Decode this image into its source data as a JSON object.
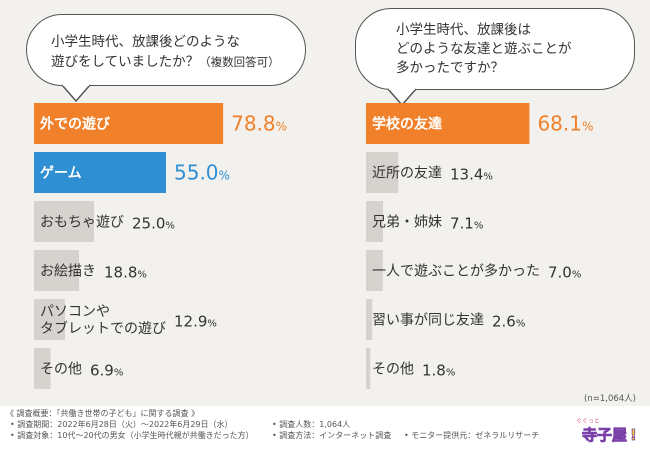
{
  "sample": "(n=1,064人)",
  "questions": {
    "left_line1": "小学生時代、放課後どのような",
    "left_line2": "遊びをしていましたか？",
    "left_note": "（複数回答可）",
    "right_line1": "小学生時代、放課後は",
    "right_line2": "どのような友達と遊ぶことが",
    "right_line3": "多かったですか？"
  },
  "colors": {
    "orange": "#f0802a",
    "blue": "#2f8fd3",
    "gray": "#d6d3cf"
  },
  "chart_data": [
    {
      "type": "bar",
      "orientation": "horizontal",
      "title": "小学生時代、放課後どのような遊びをしていましたか？（複数回答可）",
      "xlim": [
        0,
        100
      ],
      "categories": [
        "外での遊び",
        "ゲーム",
        "おもちゃ遊び",
        "お絵描き",
        "パソコンや\nタブレットでの遊び",
        "その他"
      ],
      "values": [
        78.8,
        55.0,
        25.0,
        18.8,
        12.9,
        6.9
      ],
      "value_labels": [
        "78.8%",
        "55.0%",
        "25.0%",
        "18.8%",
        "12.9%",
        "6.9%"
      ]
    },
    {
      "type": "bar",
      "orientation": "horizontal",
      "title": "小学生時代、放課後はどのような友達と遊ぶことが多かったですか？",
      "xlim": [
        0,
        100
      ],
      "categories": [
        "学校の友達",
        "近所の友達",
        "兄弟・姉妹",
        "一人で遊ぶことが多かった",
        "習い事が同じ友達",
        "その他"
      ],
      "values": [
        68.1,
        13.4,
        7.1,
        7.0,
        2.6,
        1.8
      ],
      "value_labels": [
        "68.1%",
        "13.4%",
        "7.1%",
        "7.0%",
        "2.6%",
        "1.8%"
      ]
    }
  ],
  "footer": {
    "title": "《 調査概要：「共働き世帯の子ども」に関する調査 》",
    "period": "• 調査期間：2022年6月28日（火）～2022年6月29日（水）",
    "target": "• 調査対象：10代～20代の男女（小学生時代親が共働きだった方）",
    "people": "• 調査人数：1,064人",
    "method": "• 調査方法：インターネット調査",
    "provider": "• モニター提供元：ゼネラルリサーチ"
  },
  "logo": {
    "small": "ぐぐっと",
    "main": "寺子屋"
  }
}
